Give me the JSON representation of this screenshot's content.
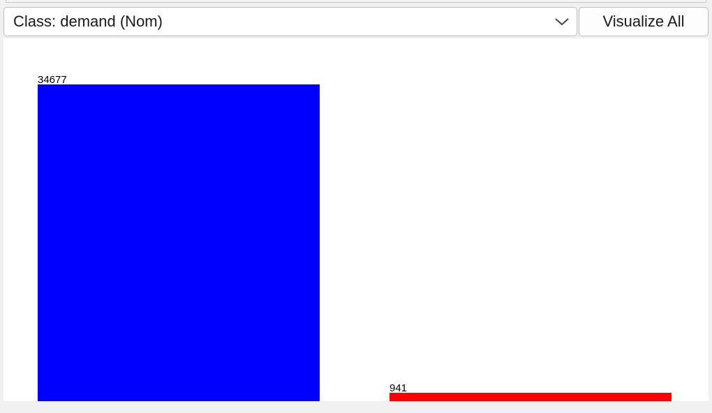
{
  "class_selector": {
    "value": "Class: demand (Nom)",
    "icon": "chevron-down-icon"
  },
  "visualize_button": {
    "label": "Visualize All"
  },
  "chart_data": {
    "type": "bar",
    "categories": [
      "",
      ""
    ],
    "values": [
      34677,
      941
    ],
    "data_labels": [
      "34677",
      "941"
    ],
    "colors": [
      "#0000ff",
      "#ff0000"
    ],
    "title": "",
    "xlabel": "",
    "ylabel": "",
    "ylim": [
      0,
      34677
    ],
    "grid": false
  }
}
